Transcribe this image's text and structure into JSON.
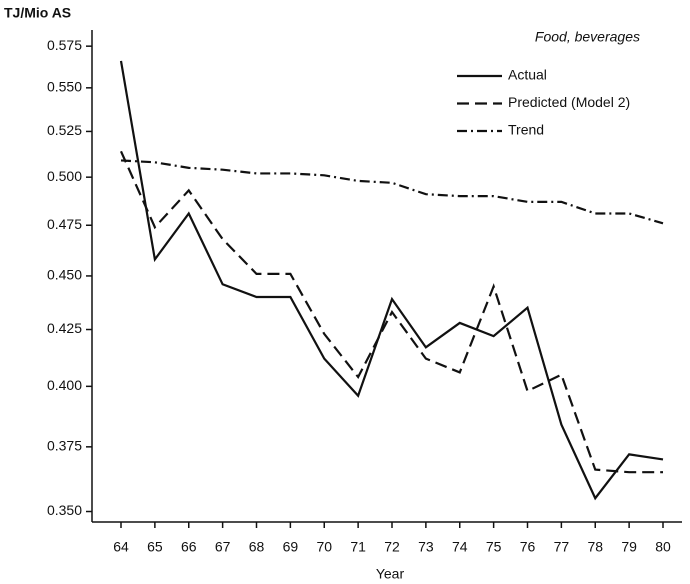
{
  "chart_data": {
    "type": "line",
    "title": "Food, beverages",
    "y_label": "TJ/Mio AS",
    "x_label": "Year",
    "categories": [
      "64",
      "65",
      "66",
      "67",
      "68",
      "69",
      "70",
      "71",
      "72",
      "73",
      "74",
      "75",
      "76",
      "77",
      "78",
      "79",
      "80"
    ],
    "series": [
      {
        "name": "Actual",
        "color": "#111111",
        "style": "solid",
        "values": [
          0.566,
          0.458,
          0.481,
          0.446,
          0.44,
          0.44,
          0.412,
          0.396,
          0.439,
          0.417,
          0.428,
          0.422,
          0.435,
          0.384,
          0.355,
          0.372,
          0.37
        ]
      },
      {
        "name": "Predicted (Model 2)",
        "color": "#111111",
        "style": "dashed",
        "values": [
          0.514,
          0.474,
          0.493,
          0.468,
          0.451,
          0.451,
          0.423,
          0.404,
          0.433,
          0.412,
          0.406,
          0.445,
          0.398,
          0.405,
          0.366,
          0.365,
          0.365
        ]
      },
      {
        "name": "Trend",
        "color": "#111111",
        "style": "dashdot",
        "values": [
          0.509,
          0.508,
          0.505,
          0.504,
          0.502,
          0.502,
          0.501,
          0.498,
          0.497,
          0.491,
          0.49,
          0.49,
          0.487,
          0.487,
          0.481,
          0.481,
          0.476
        ]
      }
    ],
    "log_scale": true,
    "ylim": [
      0.345,
      0.585
    ],
    "yticks": [
      {
        "value": 0.35,
        "label": "0.350"
      },
      {
        "value": 0.375,
        "label": "0.375"
      },
      {
        "value": 0.4,
        "label": "0.400"
      },
      {
        "value": 0.425,
        "label": "0.425"
      },
      {
        "value": 0.45,
        "label": "0.450"
      },
      {
        "value": 0.475,
        "label": "0.475"
      },
      {
        "value": 0.5,
        "label": "0.500"
      },
      {
        "value": 0.525,
        "label": "0.525"
      },
      {
        "value": 0.55,
        "label": "0.550"
      },
      {
        "value": 0.575,
        "label": "0.575"
      }
    ],
    "legend": "upper right"
  }
}
